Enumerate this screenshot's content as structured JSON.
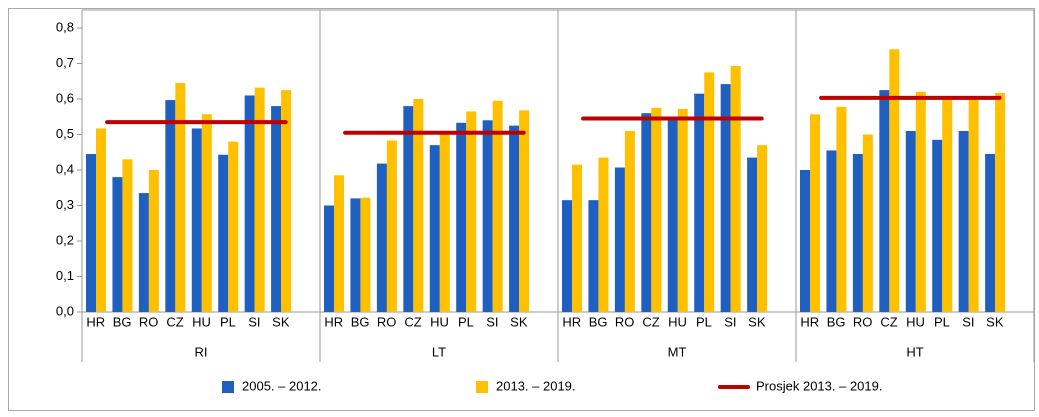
{
  "chart_data": {
    "type": "bar",
    "groups": [
      "RI",
      "LT",
      "MT",
      "HT"
    ],
    "categories": [
      "HR",
      "BG",
      "RO",
      "CZ",
      "HU",
      "PL",
      "SI",
      "SK"
    ],
    "series": [
      {
        "name": "2005. – 2012.",
        "color": "#1f5fbf",
        "values": [
          [
            0.445,
            0.38,
            0.335,
            0.597,
            0.517,
            0.443,
            0.61,
            0.58
          ],
          [
            0.3,
            0.32,
            0.418,
            0.58,
            0.47,
            0.533,
            0.54,
            0.525
          ],
          [
            0.315,
            0.315,
            0.407,
            0.56,
            0.55,
            0.615,
            0.642,
            0.435
          ],
          [
            0.4,
            0.455,
            0.445,
            0.625,
            0.51,
            0.485,
            0.51,
            0.445
          ]
        ]
      },
      {
        "name": "2013. – 2019.",
        "color": "#ffc000",
        "values": [
          [
            0.517,
            0.43,
            0.4,
            0.645,
            0.557,
            0.48,
            0.632,
            0.625
          ],
          [
            0.385,
            0.322,
            0.483,
            0.6,
            0.51,
            0.565,
            0.595,
            0.568
          ],
          [
            0.415,
            0.435,
            0.51,
            0.575,
            0.572,
            0.675,
            0.693,
            0.47
          ],
          [
            0.557,
            0.578,
            0.5,
            0.74,
            0.62,
            0.6,
            0.6,
            0.617
          ]
        ]
      }
    ],
    "average": {
      "name": "Prosjek 2013. – 2019.",
      "color": "#c00000",
      "values": [
        0.535,
        0.505,
        0.545,
        0.603
      ]
    },
    "ylim": [
      0,
      0.8
    ],
    "yticks": [
      {
        "value": 0,
        "label": "0,0"
      },
      {
        "value": 0.1,
        "label": "0,1"
      },
      {
        "value": 0.2,
        "label": "0,2"
      },
      {
        "value": 0.3,
        "label": "0,3"
      },
      {
        "value": 0.4,
        "label": "0,4"
      },
      {
        "value": 0.5,
        "label": "0,5"
      },
      {
        "value": 0.6,
        "label": "0,6"
      },
      {
        "value": 0.7,
        "label": "0,7"
      },
      {
        "value": 0.8,
        "label": "0,8"
      }
    ],
    "legend": "bottom"
  }
}
